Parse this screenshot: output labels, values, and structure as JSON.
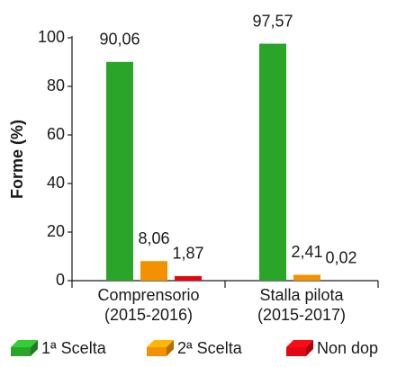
{
  "chart_data": {
    "type": "bar",
    "y_label": "Forme (%)",
    "categories": [
      [
        "Comprensorio",
        "(2015-2016)"
      ],
      [
        "Stalla pilota",
        "(2015-2017)"
      ]
    ],
    "series": [
      {
        "name": "1ª Scelta",
        "color": "#2aa52a",
        "values": [
          90.06,
          97.57
        ],
        "value_labels": [
          "90,06",
          "97,57"
        ]
      },
      {
        "name": "2ª Scelta",
        "color": "#f39200",
        "values": [
          8.06,
          2.41
        ],
        "value_labels": [
          "8,06",
          "2,41"
        ]
      },
      {
        "name": "Non dop",
        "color": "#e30613",
        "values": [
          1.87,
          0.02
        ],
        "value_labels": [
          "1,87",
          "0,02"
        ]
      }
    ],
    "ylim": [
      0,
      100
    ],
    "yticks": [
      0,
      20,
      40,
      60,
      80,
      100
    ],
    "grid": false,
    "legend": "bottom"
  }
}
